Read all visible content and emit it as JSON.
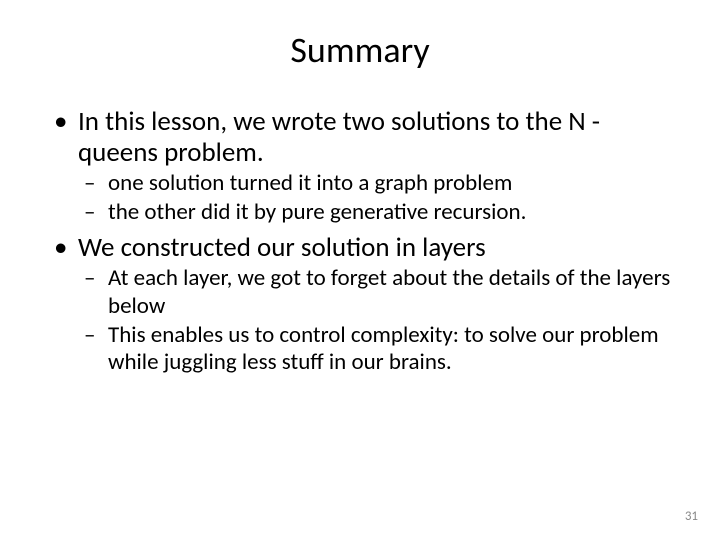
{
  "slide": {
    "title": "Summary",
    "page_number": "31",
    "background_color": "#ffffff",
    "text_color": "#000000",
    "page_number_color": "#8a8a8a",
    "font_family": "Calibri",
    "title_fontsize": 36,
    "level1_fontsize": 27,
    "level2_fontsize": 23,
    "bullets": [
      {
        "text": "In this lesson, we wrote two solutions to the N -queens problem.",
        "children": [
          {
            "text": "one solution turned it into a graph problem"
          },
          {
            "text": "the other did it by pure generative recursion."
          }
        ]
      },
      {
        "text": "We constructed our solution in layers",
        "children": [
          {
            "text": "At each layer, we got to forget about the details of the layers below"
          },
          {
            "text": "This enables us to control complexity: to solve our problem while juggling less stuff in our brains."
          }
        ]
      }
    ]
  }
}
